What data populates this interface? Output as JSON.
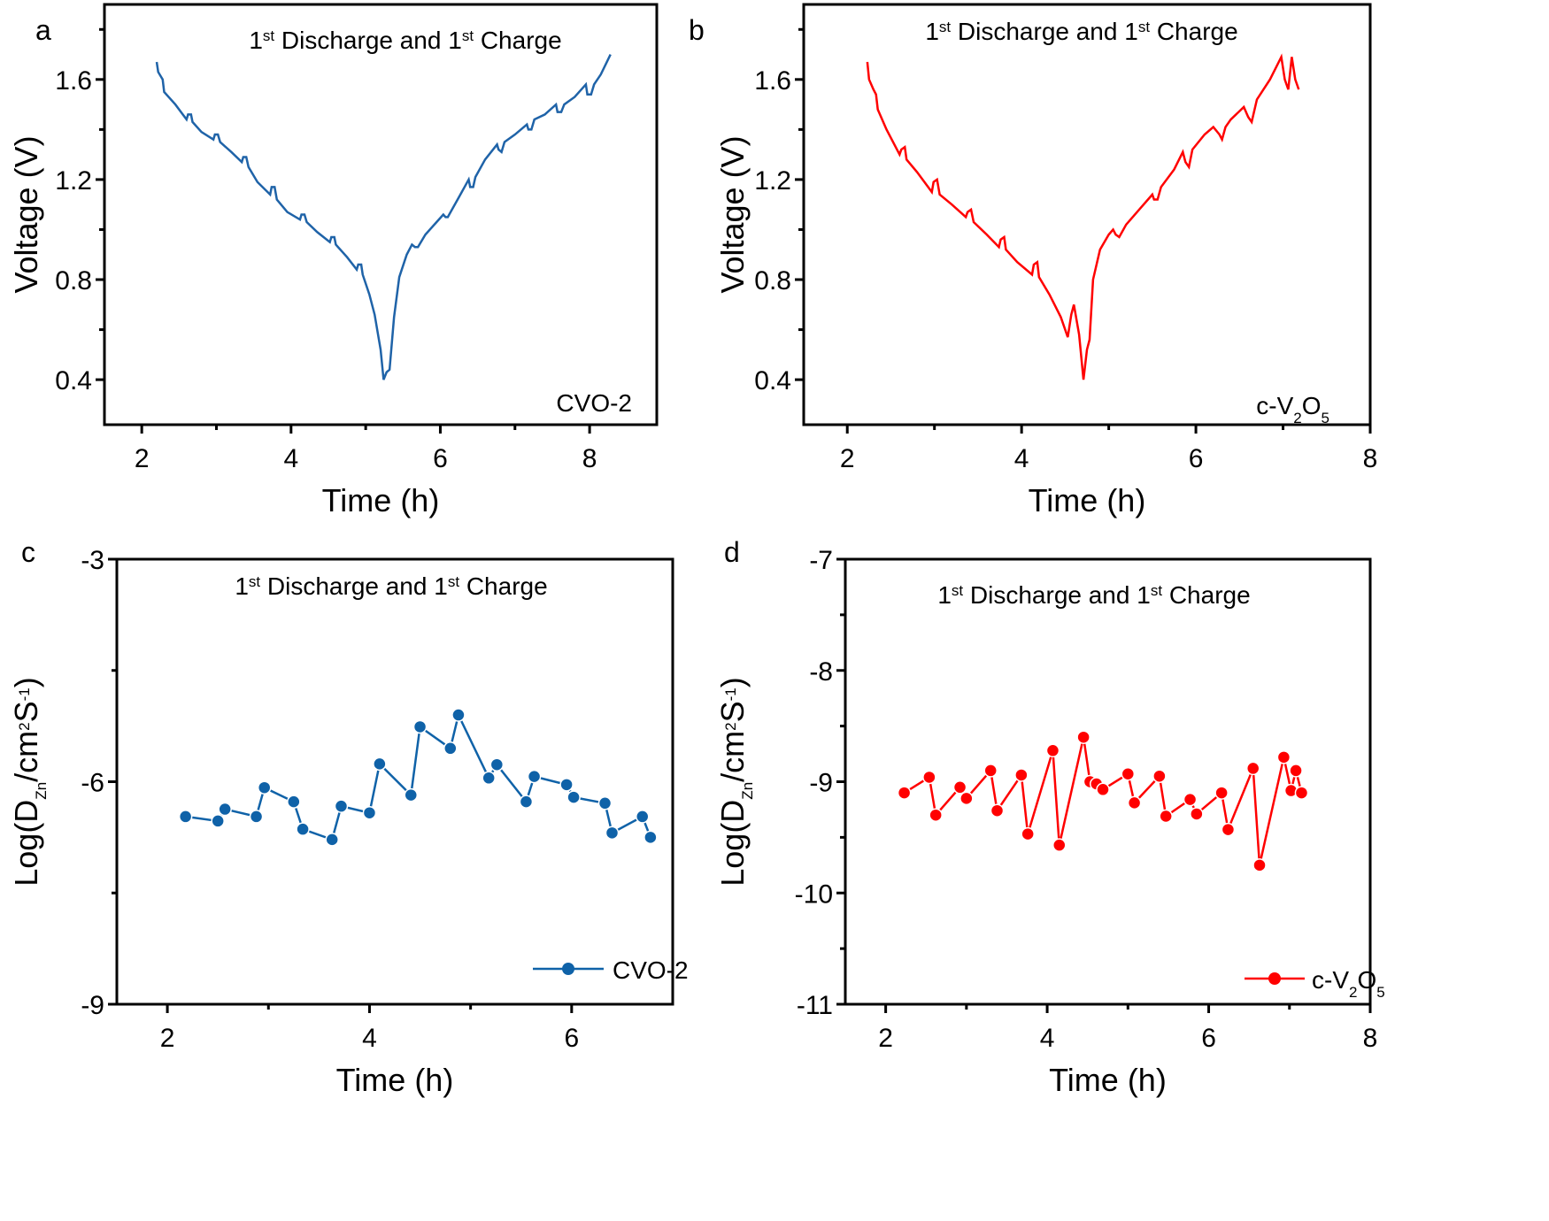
{
  "figure": {
    "panels": [
      "a",
      "b",
      "c",
      "d"
    ]
  },
  "chart_data": [
    {
      "id": "a",
      "type": "line",
      "panel_label": "a",
      "title_parts": [
        "1",
        "st",
        " Discharge and 1",
        "st",
        " Charge"
      ],
      "title": "1st Discharge and 1st Charge",
      "xlabel": "Time (h)",
      "ylabel": "Voltage (V)",
      "xlim": [
        1.5,
        8.9
      ],
      "ylim": [
        0.22,
        1.9
      ],
      "xticks": [
        2,
        4,
        6,
        8
      ],
      "xtick_labels": [
        "2",
        "4",
        "6",
        "8"
      ],
      "yticks": [
        0.4,
        0.8,
        1.2,
        1.6
      ],
      "ytick_labels": [
        "0.4",
        "0.8",
        "1.2",
        "1.6"
      ],
      "annotation": "CVO-2",
      "color": "#1f63a8",
      "series": [
        {
          "name": "CVO-2",
          "x": [
            2.2,
            2.22,
            2.26,
            2.28,
            2.3,
            2.45,
            2.6,
            2.62,
            2.66,
            2.68,
            2.8,
            2.96,
            2.98,
            3.02,
            3.05,
            3.2,
            3.34,
            3.36,
            3.4,
            3.43,
            3.55,
            3.72,
            3.74,
            3.78,
            3.81,
            3.95,
            4.12,
            4.14,
            4.18,
            4.21,
            4.35,
            4.52,
            4.54,
            4.58,
            4.6,
            4.75,
            4.88,
            4.9,
            4.94,
            4.96,
            5.05,
            5.12,
            5.2,
            5.24,
            5.28,
            5.32,
            5.38,
            5.45,
            5.55,
            5.62,
            5.66,
            5.7,
            5.8,
            5.95,
            6.04,
            6.07,
            6.1,
            6.25,
            6.38,
            6.4,
            6.44,
            6.47,
            6.6,
            6.76,
            6.78,
            6.82,
            6.86,
            7.0,
            7.16,
            7.18,
            7.22,
            7.26,
            7.4,
            7.55,
            7.57,
            7.62,
            7.66,
            7.8,
            7.95,
            7.97,
            8.02,
            8.06,
            8.15,
            8.28
          ],
          "y": [
            1.67,
            1.63,
            1.61,
            1.6,
            1.55,
            1.5,
            1.44,
            1.46,
            1.46,
            1.43,
            1.39,
            1.36,
            1.38,
            1.38,
            1.35,
            1.31,
            1.27,
            1.29,
            1.29,
            1.25,
            1.19,
            1.14,
            1.17,
            1.17,
            1.12,
            1.07,
            1.04,
            1.06,
            1.06,
            1.03,
            0.99,
            0.95,
            0.97,
            0.97,
            0.94,
            0.89,
            0.84,
            0.86,
            0.86,
            0.82,
            0.74,
            0.66,
            0.52,
            0.4,
            0.43,
            0.44,
            0.65,
            0.81,
            0.9,
            0.94,
            0.93,
            0.93,
            0.98,
            1.03,
            1.06,
            1.05,
            1.05,
            1.13,
            1.2,
            1.17,
            1.17,
            1.21,
            1.28,
            1.34,
            1.32,
            1.31,
            1.35,
            1.38,
            1.42,
            1.4,
            1.4,
            1.44,
            1.46,
            1.5,
            1.47,
            1.47,
            1.5,
            1.53,
            1.58,
            1.54,
            1.54,
            1.58,
            1.62,
            1.7
          ]
        }
      ]
    },
    {
      "id": "b",
      "type": "line",
      "panel_label": "b",
      "title_parts": [
        "1",
        "st",
        " Discharge and 1",
        "st",
        " Charge"
      ],
      "title": "1st Discharge and 1st Charge",
      "xlabel": "Time (h)",
      "ylabel": "Voltage (V)",
      "xlim": [
        1.5,
        8.0
      ],
      "ylim": [
        0.22,
        1.9
      ],
      "xticks": [
        2,
        4,
        6,
        8
      ],
      "xtick_labels": [
        "2",
        "4",
        "6",
        "8"
      ],
      "yticks": [
        0.4,
        0.8,
        1.2,
        1.6
      ],
      "ytick_labels": [
        "0.4",
        "0.8",
        "1.2",
        "1.6"
      ],
      "annotation_parts": [
        "c-V",
        "2",
        "O",
        "5"
      ],
      "annotation": "c-V2O5",
      "color": "#ff0000",
      "series": [
        {
          "name": "c-V2O5",
          "x": [
            2.23,
            2.25,
            2.3,
            2.33,
            2.35,
            2.45,
            2.6,
            2.62,
            2.66,
            2.68,
            2.8,
            2.97,
            2.99,
            3.03,
            3.06,
            3.2,
            3.36,
            3.38,
            3.42,
            3.45,
            3.6,
            3.74,
            3.76,
            3.8,
            3.82,
            3.95,
            4.12,
            4.14,
            4.18,
            4.2,
            4.32,
            4.45,
            4.53,
            4.57,
            4.6,
            4.66,
            4.71,
            4.75,
            4.78,
            4.82,
            4.9,
            5.0,
            5.05,
            5.08,
            5.12,
            5.2,
            5.35,
            5.5,
            5.52,
            5.56,
            5.6,
            5.75,
            5.85,
            5.88,
            5.92,
            5.96,
            6.1,
            6.2,
            6.27,
            6.3,
            6.34,
            6.4,
            6.55,
            6.6,
            6.64,
            6.7,
            6.85,
            6.98,
            7.02,
            7.06,
            7.1,
            7.14,
            7.18
          ],
          "y": [
            1.67,
            1.6,
            1.56,
            1.54,
            1.48,
            1.4,
            1.3,
            1.32,
            1.33,
            1.28,
            1.23,
            1.15,
            1.19,
            1.2,
            1.14,
            1.1,
            1.05,
            1.07,
            1.08,
            1.03,
            0.98,
            0.93,
            0.96,
            0.97,
            0.92,
            0.87,
            0.82,
            0.86,
            0.87,
            0.81,
            0.74,
            0.65,
            0.57,
            0.66,
            0.7,
            0.58,
            0.4,
            0.52,
            0.56,
            0.8,
            0.92,
            0.98,
            1.0,
            0.98,
            0.97,
            1.02,
            1.08,
            1.14,
            1.12,
            1.12,
            1.17,
            1.24,
            1.31,
            1.27,
            1.25,
            1.32,
            1.38,
            1.41,
            1.38,
            1.36,
            1.41,
            1.44,
            1.49,
            1.45,
            1.43,
            1.52,
            1.6,
            1.69,
            1.6,
            1.56,
            1.69,
            1.6,
            1.56
          ]
        }
      ]
    },
    {
      "id": "c",
      "type": "line",
      "panel_label": "c",
      "title_parts": [
        "1",
        "st",
        " Discharge and 1",
        "st",
        " Charge"
      ],
      "title": "1st Discharge and 1st Charge",
      "xlabel": "Time (h)",
      "ylabel_parts": [
        "Log(D",
        "Zn",
        "/cm",
        "2",
        "S",
        "-1",
        ")"
      ],
      "ylabel": "Log(D_Zn/cm^2 S^-1)",
      "xlim": [
        1.5,
        7.0
      ],
      "ylim": [
        -9,
        -3
      ],
      "xticks": [
        2,
        4,
        6
      ],
      "xtick_labels": [
        "2",
        "4",
        "6"
      ],
      "yticks": [
        -9,
        -6,
        -3
      ],
      "ytick_labels": [
        "-9",
        "-6",
        "-3"
      ],
      "legend": {
        "label": "CVO-2",
        "position": "bottom-right"
      },
      "color": "#0f62a8",
      "series": [
        {
          "name": "CVO-2",
          "x": [
            2.18,
            2.5,
            2.57,
            2.88,
            2.96,
            3.25,
            3.34,
            3.63,
            3.72,
            4.0,
            4.1,
            4.41,
            4.5,
            4.8,
            4.88,
            5.18,
            5.26,
            5.55,
            5.63,
            5.95,
            6.02,
            6.33,
            6.4,
            6.7,
            6.78
          ],
          "y": [
            -6.47,
            -6.53,
            -6.37,
            -6.47,
            -6.08,
            -6.27,
            -6.64,
            -6.78,
            -6.33,
            -6.42,
            -5.76,
            -6.18,
            -5.26,
            -5.55,
            -5.1,
            -5.95,
            -5.77,
            -6.27,
            -5.93,
            -6.04,
            -6.21,
            -6.29,
            -6.69,
            -6.47,
            -6.75
          ]
        }
      ]
    },
    {
      "id": "d",
      "type": "line",
      "panel_label": "d",
      "title_parts": [
        "1",
        "st",
        " Discharge and 1",
        "st",
        " Charge"
      ],
      "title": "1st Discharge and 1st Charge",
      "xlabel": "Time (h)",
      "ylabel_parts": [
        "Log(D",
        "Zn",
        "/cm",
        "2",
        "S",
        "-1",
        ")"
      ],
      "ylabel": "Log(D_Zn/cm^2 S^-1)",
      "xlim": [
        1.5,
        8.0
      ],
      "ylim": [
        -11,
        -7
      ],
      "xticks": [
        2,
        4,
        6,
        8
      ],
      "xtick_labels": [
        "2",
        "4",
        "6",
        "8"
      ],
      "yticks": [
        -11,
        -10,
        -9,
        -8,
        -7
      ],
      "ytick_labels": [
        "-11",
        "-10",
        "-9",
        "-8",
        "-7"
      ],
      "legend": {
        "label_parts": [
          "c-V",
          "2",
          "O",
          "5"
        ],
        "label": "c-V2O5",
        "position": "bottom-right"
      },
      "color": "#ff0000",
      "series": [
        {
          "name": "c-V2O5",
          "x": [
            2.23,
            2.54,
            2.62,
            2.92,
            3.0,
            3.3,
            3.38,
            3.68,
            3.76,
            4.07,
            4.15,
            4.45,
            4.53,
            4.61,
            4.69,
            5.0,
            5.08,
            5.39,
            5.47,
            5.77,
            5.85,
            6.16,
            6.24,
            6.55,
            6.63,
            6.93,
            7.02,
            7.08,
            7.15
          ],
          "y": [
            -9.1,
            -8.96,
            -9.3,
            -9.05,
            -9.15,
            -8.9,
            -9.26,
            -8.94,
            -9.47,
            -8.72,
            -9.57,
            -8.6,
            -9.0,
            -9.02,
            -9.07,
            -8.93,
            -9.19,
            -8.95,
            -9.31,
            -9.16,
            -9.29,
            -9.1,
            -9.43,
            -8.88,
            -9.75,
            -8.78,
            -9.08,
            -8.9,
            -9.1
          ]
        }
      ]
    }
  ]
}
